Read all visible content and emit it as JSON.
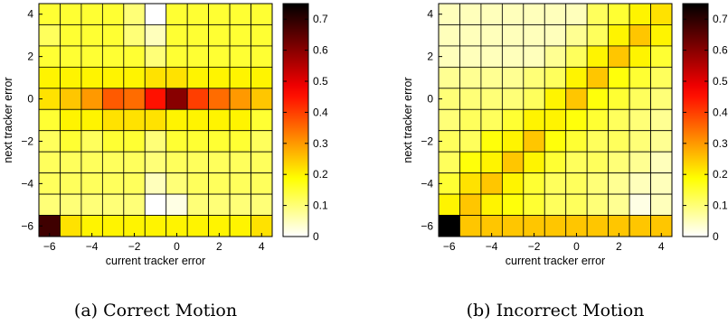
{
  "chart_data": [
    {
      "type": "heatmap",
      "caption": "(a) Correct Motion",
      "xlabel": "current tracker error",
      "ylabel": "next tracker error",
      "x_categories": [
        -6,
        -5,
        -4,
        -3,
        -2,
        -1,
        0,
        1,
        2,
        3,
        4
      ],
      "y_categories": [
        4,
        3,
        2,
        1,
        0,
        -1,
        -2,
        -3,
        -4,
        -5,
        -6
      ],
      "x_ticks": [
        -6,
        -4,
        -2,
        0,
        2,
        4
      ],
      "y_ticks": [
        4,
        2,
        0,
        -2,
        -4,
        -6
      ],
      "colorbar": {
        "range": [
          0,
          0.75
        ],
        "ticks": [
          0,
          0.1,
          0.2,
          0.3,
          0.4,
          0.5,
          0.6,
          0.7
        ],
        "colormap": "hot-reversed"
      },
      "values": [
        [
          0.15,
          0.15,
          0.15,
          0.15,
          0.1,
          0.0,
          0.15,
          0.15,
          0.15,
          0.15,
          0.15
        ],
        [
          0.12,
          0.15,
          0.15,
          0.15,
          0.1,
          0.05,
          0.15,
          0.15,
          0.15,
          0.15,
          0.15
        ],
        [
          0.15,
          0.15,
          0.15,
          0.15,
          0.15,
          0.1,
          0.15,
          0.15,
          0.15,
          0.15,
          0.15
        ],
        [
          0.2,
          0.2,
          0.2,
          0.2,
          0.2,
          0.22,
          0.22,
          0.2,
          0.2,
          0.2,
          0.2
        ],
        [
          0.22,
          0.25,
          0.3,
          0.37,
          0.35,
          0.45,
          0.6,
          0.4,
          0.35,
          0.3,
          0.25
        ],
        [
          0.15,
          0.2,
          0.2,
          0.22,
          0.22,
          0.22,
          0.2,
          0.2,
          0.2,
          0.2,
          0.15
        ],
        [
          0.12,
          0.15,
          0.12,
          0.15,
          0.15,
          0.1,
          0.15,
          0.15,
          0.15,
          0.15,
          0.12
        ],
        [
          0.12,
          0.12,
          0.12,
          0.12,
          0.12,
          0.1,
          0.12,
          0.12,
          0.12,
          0.12,
          0.12
        ],
        [
          0.12,
          0.12,
          0.12,
          0.12,
          0.12,
          0.05,
          0.1,
          0.12,
          0.12,
          0.12,
          0.12
        ],
        [
          0.1,
          0.1,
          0.1,
          0.1,
          0.1,
          0.0,
          0.02,
          0.1,
          0.1,
          0.1,
          0.1
        ],
        [
          0.68,
          0.22,
          0.2,
          0.2,
          0.2,
          0.2,
          0.2,
          0.2,
          0.2,
          0.2,
          0.22
        ]
      ]
    },
    {
      "type": "heatmap",
      "caption": "(b) Incorrect Motion",
      "xlabel": "current tracker error",
      "ylabel": "next tracker error",
      "x_categories": [
        -6,
        -5,
        -4,
        -3,
        -2,
        -1,
        0,
        1,
        2,
        3,
        4
      ],
      "y_categories": [
        4,
        3,
        2,
        1,
        0,
        -1,
        -2,
        -3,
        -4,
        -5,
        -6
      ],
      "x_ticks": [
        -6,
        -4,
        -2,
        0,
        2,
        4
      ],
      "y_ticks": [
        4,
        2,
        0,
        -2,
        -4,
        -6
      ],
      "colorbar": {
        "range": [
          0,
          0.75
        ],
        "ticks": [
          0,
          0.1,
          0.2,
          0.3,
          0.4,
          0.5,
          0.6,
          0.7
        ],
        "colormap": "hot-reversed"
      },
      "values": [
        [
          0.05,
          0.05,
          0.05,
          0.05,
          0.05,
          0.05,
          0.05,
          0.12,
          0.15,
          0.2,
          0.22
        ],
        [
          0.05,
          0.05,
          0.05,
          0.05,
          0.05,
          0.05,
          0.08,
          0.12,
          0.2,
          0.25,
          0.2
        ],
        [
          0.05,
          0.05,
          0.05,
          0.05,
          0.05,
          0.08,
          0.12,
          0.2,
          0.25,
          0.2,
          0.15
        ],
        [
          0.08,
          0.08,
          0.08,
          0.08,
          0.1,
          0.12,
          0.2,
          0.25,
          0.18,
          0.15,
          0.12
        ],
        [
          0.1,
          0.1,
          0.1,
          0.1,
          0.12,
          0.2,
          0.25,
          0.18,
          0.15,
          0.12,
          0.1
        ],
        [
          0.1,
          0.12,
          0.12,
          0.15,
          0.2,
          0.2,
          0.18,
          0.15,
          0.12,
          0.1,
          0.08
        ],
        [
          0.12,
          0.12,
          0.18,
          0.2,
          0.25,
          0.18,
          0.15,
          0.12,
          0.12,
          0.1,
          0.08
        ],
        [
          0.12,
          0.18,
          0.2,
          0.25,
          0.2,
          0.15,
          0.12,
          0.12,
          0.1,
          0.08,
          0.05
        ],
        [
          0.15,
          0.22,
          0.25,
          0.2,
          0.15,
          0.12,
          0.12,
          0.1,
          0.08,
          0.05,
          0.05
        ],
        [
          0.2,
          0.25,
          0.2,
          0.18,
          0.15,
          0.12,
          0.12,
          0.1,
          0.08,
          0.02,
          0.05
        ],
        [
          0.75,
          0.25,
          0.25,
          0.25,
          0.25,
          0.25,
          0.25,
          0.25,
          0.25,
          0.25,
          0.25
        ]
      ]
    }
  ]
}
